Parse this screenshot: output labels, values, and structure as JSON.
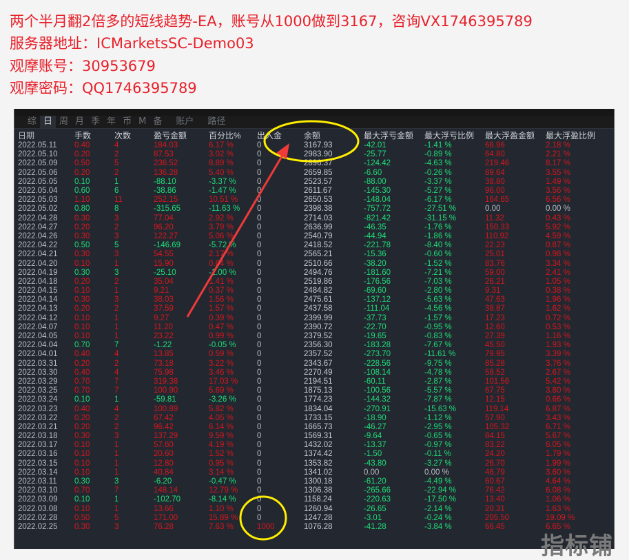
{
  "headings": [
    "两个半月翻2倍多的短线趋势-EA，账号从1000做到3167，咨询VX1746395789",
    "服务器地址：ICMarketsSC-Demo03",
    "观摩账号：30953679",
    "观摩密码：QQ1746395789"
  ],
  "tabs": [
    {
      "label": "综",
      "active": false
    },
    {
      "label": "日",
      "active": true
    },
    {
      "label": "周",
      "active": false
    },
    {
      "label": "月",
      "active": false
    },
    {
      "label": "季",
      "active": false
    },
    {
      "label": "年",
      "active": false
    },
    {
      "label": "币",
      "active": false
    },
    {
      "label": "M",
      "active": false
    },
    {
      "label": "备",
      "active": false
    },
    {
      "label": "账户",
      "active": false
    },
    {
      "label": "路径",
      "active": false
    }
  ],
  "columns": [
    "日期",
    "手数",
    "次数",
    "盈亏金额",
    "百分比%",
    "出入金",
    "余额",
    "最大浮亏金额",
    "最大浮亏比例",
    "最大浮盈金额",
    "最大浮盈比例"
  ],
  "colors": {
    "profit": "#d8151d",
    "loss": "#1fdc78",
    "neutral": "#b9bdc4",
    "highlight": "#ffee00",
    "arrow": "#f03a3a"
  },
  "rows": [
    [
      "2022.05.11",
      "0.40",
      "4",
      "184.03",
      "6.17 %",
      "0",
      "3167.93",
      "-42.01",
      "-1.41 %",
      "66.96",
      "2.18 %"
    ],
    [
      "2022.05.10",
      "0.20",
      "2",
      "87.53",
      "3.02 %",
      "0",
      "2983.90",
      "-25.77",
      "-0.89 %",
      "64.80",
      "2.21 %"
    ],
    [
      "2022.05.09",
      "0.50",
      "5",
      "236.52",
      "8.89 %",
      "0",
      "2896.37",
      "-124.42",
      "-4.63 %",
      "219.46",
      "8.17 %"
    ],
    [
      "2022.05.06",
      "0.20",
      "2",
      "136.28",
      "5.40 %",
      "0",
      "2659.85",
      "-6.60",
      "-0.26 %",
      "89.64",
      "3.55 %"
    ],
    [
      "2022.05.05",
      "0.10",
      "1",
      "-88.10",
      "-3.37 %",
      "0",
      "2523.57",
      "-88.00",
      "-3.37 %",
      "38.80",
      "1.49 %"
    ],
    [
      "2022.05.04",
      "0.60",
      "6",
      "-38.86",
      "-1.47 %",
      "0",
      "2611.67",
      "-145.30",
      "-5.27 %",
      "96.00",
      "3.56 %"
    ],
    [
      "2022.05.03",
      "1.10",
      "11",
      "252.15",
      "10.51 %",
      "0",
      "2650.53",
      "-148.04",
      "-6.17 %",
      "164.65",
      "6.56 %"
    ],
    [
      "2022.05.02",
      "0.80",
      "8",
      "-315.65",
      "-11.63 %",
      "0",
      "2398.38",
      "-757.72",
      "-27.51 %",
      "0.00",
      "0.00 %"
    ],
    [
      "2022.04.28",
      "0.30",
      "3",
      "77.04",
      "2.92 %",
      "0",
      "2714.03",
      "-821.42",
      "-31.15 %",
      "11.32",
      "0.43 %"
    ],
    [
      "2022.04.27",
      "0.20",
      "2",
      "96.20",
      "3.79 %",
      "0",
      "2636.99",
      "-46.35",
      "-1.76 %",
      "150.33",
      "5.92 %"
    ],
    [
      "2022.04.26",
      "0.30",
      "3",
      "122.27",
      "5.06 %",
      "0",
      "2540.79",
      "-44.94",
      "-1.86 %",
      "110.92",
      "4.59 %"
    ],
    [
      "2022.04.22",
      "0.50",
      "5",
      "-146.69",
      "-5.72 %",
      "0",
      "2418.52",
      "-221.78",
      "-8.40 %",
      "22.23",
      "0.87 %"
    ],
    [
      "2022.04.21",
      "0.30",
      "3",
      "54.55",
      "2.17 %",
      "0",
      "2565.21",
      "-15.36",
      "-0.60 %",
      "25.01",
      "0.98 %"
    ],
    [
      "2022.04.20",
      "0.10",
      "1",
      "15.90",
      "0.64 %",
      "0",
      "2510.66",
      "-38.20",
      "-1.52 %",
      "83.76",
      "3.34 %"
    ],
    [
      "2022.04.19",
      "0.30",
      "3",
      "-25.10",
      "-1.00 %",
      "0",
      "2494.76",
      "-181.60",
      "-7.21 %",
      "59.00",
      "2.41 %"
    ],
    [
      "2022.04.18",
      "0.20",
      "2",
      "35.04",
      "1.41 %",
      "0",
      "2519.86",
      "-176.56",
      "-7.03 %",
      "26.21",
      "1.05 %"
    ],
    [
      "2022.04.15",
      "0.10",
      "1",
      "9.21",
      "0.37 %",
      "0",
      "2484.82",
      "-69.60",
      "-2.80 %",
      "9.31",
      "0.38 %"
    ],
    [
      "2022.04.14",
      "0.30",
      "3",
      "38.03",
      "1.56 %",
      "0",
      "2475.61",
      "-137.12",
      "-5.63 %",
      "47.63",
      "1.96 %"
    ],
    [
      "2022.04.13",
      "0.20",
      "2",
      "37.59",
      "1.57 %",
      "0",
      "2437.58",
      "-111.04",
      "-4.56 %",
      "38.87",
      "1.62 %"
    ],
    [
      "2022.04.12",
      "0.10",
      "1",
      "9.27",
      "0.39 %",
      "0",
      "2399.99",
      "-37.73",
      "-1.57 %",
      "17.23",
      "0.72 %"
    ],
    [
      "2022.04.07",
      "0.10",
      "1",
      "11.20",
      "0.47 %",
      "0",
      "2390.72",
      "-22.70",
      "-0.95 %",
      "12.60",
      "0.53 %"
    ],
    [
      "2022.04.05",
      "0.10",
      "1",
      "23.22",
      "0.99 %",
      "0",
      "2379.52",
      "-19.65",
      "-0.83 %",
      "27.39",
      "1.16 %"
    ],
    [
      "2022.04.04",
      "0.70",
      "7",
      "-1.22",
      "-0.05 %",
      "0",
      "2356.30",
      "-183.28",
      "-7.67 %",
      "45.50",
      "1.93 %"
    ],
    [
      "2022.04.01",
      "0.40",
      "4",
      "13.85",
      "0.59 %",
      "0",
      "2357.52",
      "-273.70",
      "-11.61 %",
      "79.95",
      "3.39 %"
    ],
    [
      "2022.03.31",
      "0.20",
      "2",
      "73.18",
      "3.22 %",
      "0",
      "2343.67",
      "-228.56",
      "-9.75 %",
      "85.28",
      "3.76 %"
    ],
    [
      "2022.03.30",
      "0.40",
      "4",
      "75.98",
      "3.46 %",
      "0",
      "2270.49",
      "-108.14",
      "-4.78 %",
      "58.52",
      "2.67 %"
    ],
    [
      "2022.03.29",
      "0.70",
      "7",
      "319.38",
      "17.03 %",
      "0",
      "2194.51",
      "-60.11",
      "-2.87 %",
      "101.56",
      "5.42 %"
    ],
    [
      "2022.03.25",
      "0.70",
      "7",
      "100.90",
      "5.69 %",
      "0",
      "1875.13",
      "-100.56",
      "-5.57 %",
      "67.75",
      "3.80 %"
    ],
    [
      "2022.03.24",
      "0.10",
      "1",
      "-59.81",
      "-3.26 %",
      "0",
      "1774.23",
      "-144.32",
      "-7.87 %",
      "12.15",
      "0.66 %"
    ],
    [
      "2022.03.23",
      "0.40",
      "4",
      "100.89",
      "5.82 %",
      "0",
      "1834.04",
      "-270.91",
      "-15.63 %",
      "119.14",
      "6.87 %"
    ],
    [
      "2022.03.22",
      "0.20",
      "2",
      "67.42",
      "4.05 %",
      "0",
      "1733.15",
      "-18.90",
      "-1.12 %",
      "57.90",
      "3.43 %"
    ],
    [
      "2022.03.21",
      "0.20",
      "2",
      "96.42",
      "6.14 %",
      "0",
      "1665.73",
      "-46.27",
      "-2.95 %",
      "105.32",
      "6.71 %"
    ],
    [
      "2022.03.18",
      "0.30",
      "3",
      "137.29",
      "9.59 %",
      "0",
      "1569.31",
      "-9.64",
      "-0.65 %",
      "84.15",
      "5.67 %"
    ],
    [
      "2022.03.17",
      "0.10",
      "1",
      "57.60",
      "4.19 %",
      "0",
      "1432.02",
      "-13.37",
      "-0.97 %",
      "83.22",
      "6.05 %"
    ],
    [
      "2022.03.16",
      "0.10",
      "1",
      "20.60",
      "1.52 %",
      "0",
      "1374.42",
      "-1.50",
      "-0.11 %",
      "24.20",
      "1.79 %"
    ],
    [
      "2022.03.15",
      "0.10",
      "1",
      "12.80",
      "0.95 %",
      "0",
      "1353.82",
      "-43.80",
      "-3.27 %",
      "26.70",
      "1.99 %"
    ],
    [
      "2022.03.14",
      "0.10",
      "1",
      "40.84",
      "3.14 %",
      "0",
      "1341.02",
      "0.00",
      "0.00 %",
      "46.79",
      "3.60 %"
    ],
    [
      "2022.03.11",
      "0.30",
      "3",
      "-6.20",
      "-0.47 %",
      "0",
      "1300.18",
      "-61.20",
      "-4.49 %",
      "60.67",
      "4.64 %"
    ],
    [
      "2022.03.10",
      "0.70",
      "7",
      "148.14",
      "12.79 %",
      "0",
      "1306.38",
      "-265.66",
      "-22.94 %",
      "76.42",
      "6.08 %"
    ],
    [
      "2022.03.09",
      "0.10",
      "1",
      "-102.70",
      "-8.14 %",
      "0",
      "1158.24",
      "-220.63",
      "-17.50 %",
      "13.40",
      "1.06 %"
    ],
    [
      "2022.03.08",
      "0.10",
      "1",
      "13.66",
      "1.10 %",
      "0",
      "1260.94",
      "-26.65",
      "-2.14 %",
      "20.31",
      "1.63 %"
    ],
    [
      "2022.02.28",
      "0.50",
      "5",
      "171.00",
      "15.89 %",
      "0",
      "1247.28",
      "-3.01",
      "-0.24 %",
      "205.50",
      "19.09 %"
    ],
    [
      "2022.02.25",
      "0.30",
      "3",
      "76.28",
      "7.63 %",
      "1000",
      "1076.28",
      "-41.28",
      "-3.84 %",
      "66.45",
      "6.65 %"
    ]
  ],
  "watermark": "指标铺"
}
